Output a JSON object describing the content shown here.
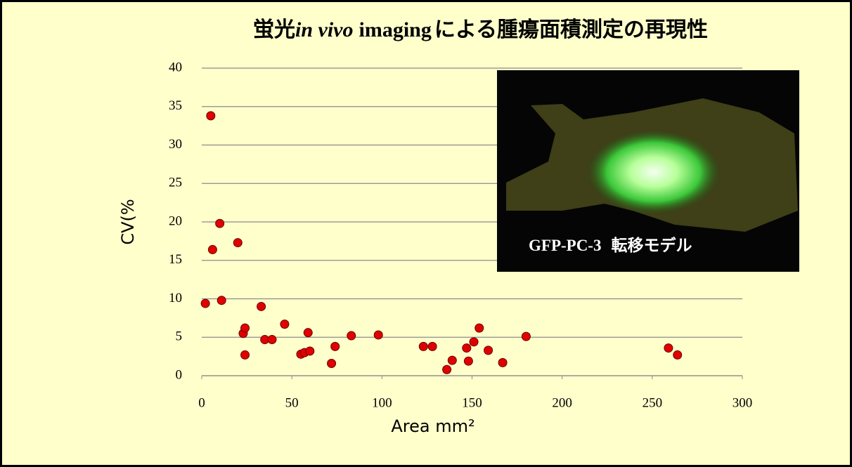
{
  "chart_data": {
    "type": "scatter",
    "title": [
      "蛍光",
      "in vivo",
      "imaging",
      "による腫瘍面積測定の再現性"
    ],
    "xlabel": "Area mm²",
    "ylabel": "CV(%",
    "inset_label": [
      "GFP-PC-3",
      "転移モデル"
    ],
    "color": "#e00000",
    "grid": true,
    "xlim": [
      0,
      300
    ],
    "xticks": [
      0,
      50,
      100,
      150,
      200,
      250,
      300
    ],
    "ylim": [
      0,
      40
    ],
    "yticks": [
      0,
      5,
      10,
      15,
      20,
      25,
      30,
      35,
      40
    ],
    "x": [
      2,
      5,
      6,
      10,
      11,
      20,
      23,
      24,
      24,
      33,
      35,
      39,
      46,
      55,
      57,
      59,
      60,
      72,
      74,
      83,
      98,
      123,
      128,
      136,
      139,
      147,
      148,
      151,
      154,
      159,
      167,
      180,
      259,
      264
    ],
    "values": [
      9.4,
      33.8,
      16.4,
      19.8,
      9.8,
      17.3,
      5.5,
      6.2,
      2.7,
      9.0,
      4.7,
      4.7,
      6.7,
      2.8,
      3.0,
      5.6,
      3.2,
      1.6,
      3.8,
      5.2,
      5.3,
      3.8,
      3.8,
      0.8,
      2.0,
      3.6,
      1.9,
      4.4,
      6.2,
      3.3,
      1.7,
      5.1,
      3.6,
      2.7
    ]
  }
}
